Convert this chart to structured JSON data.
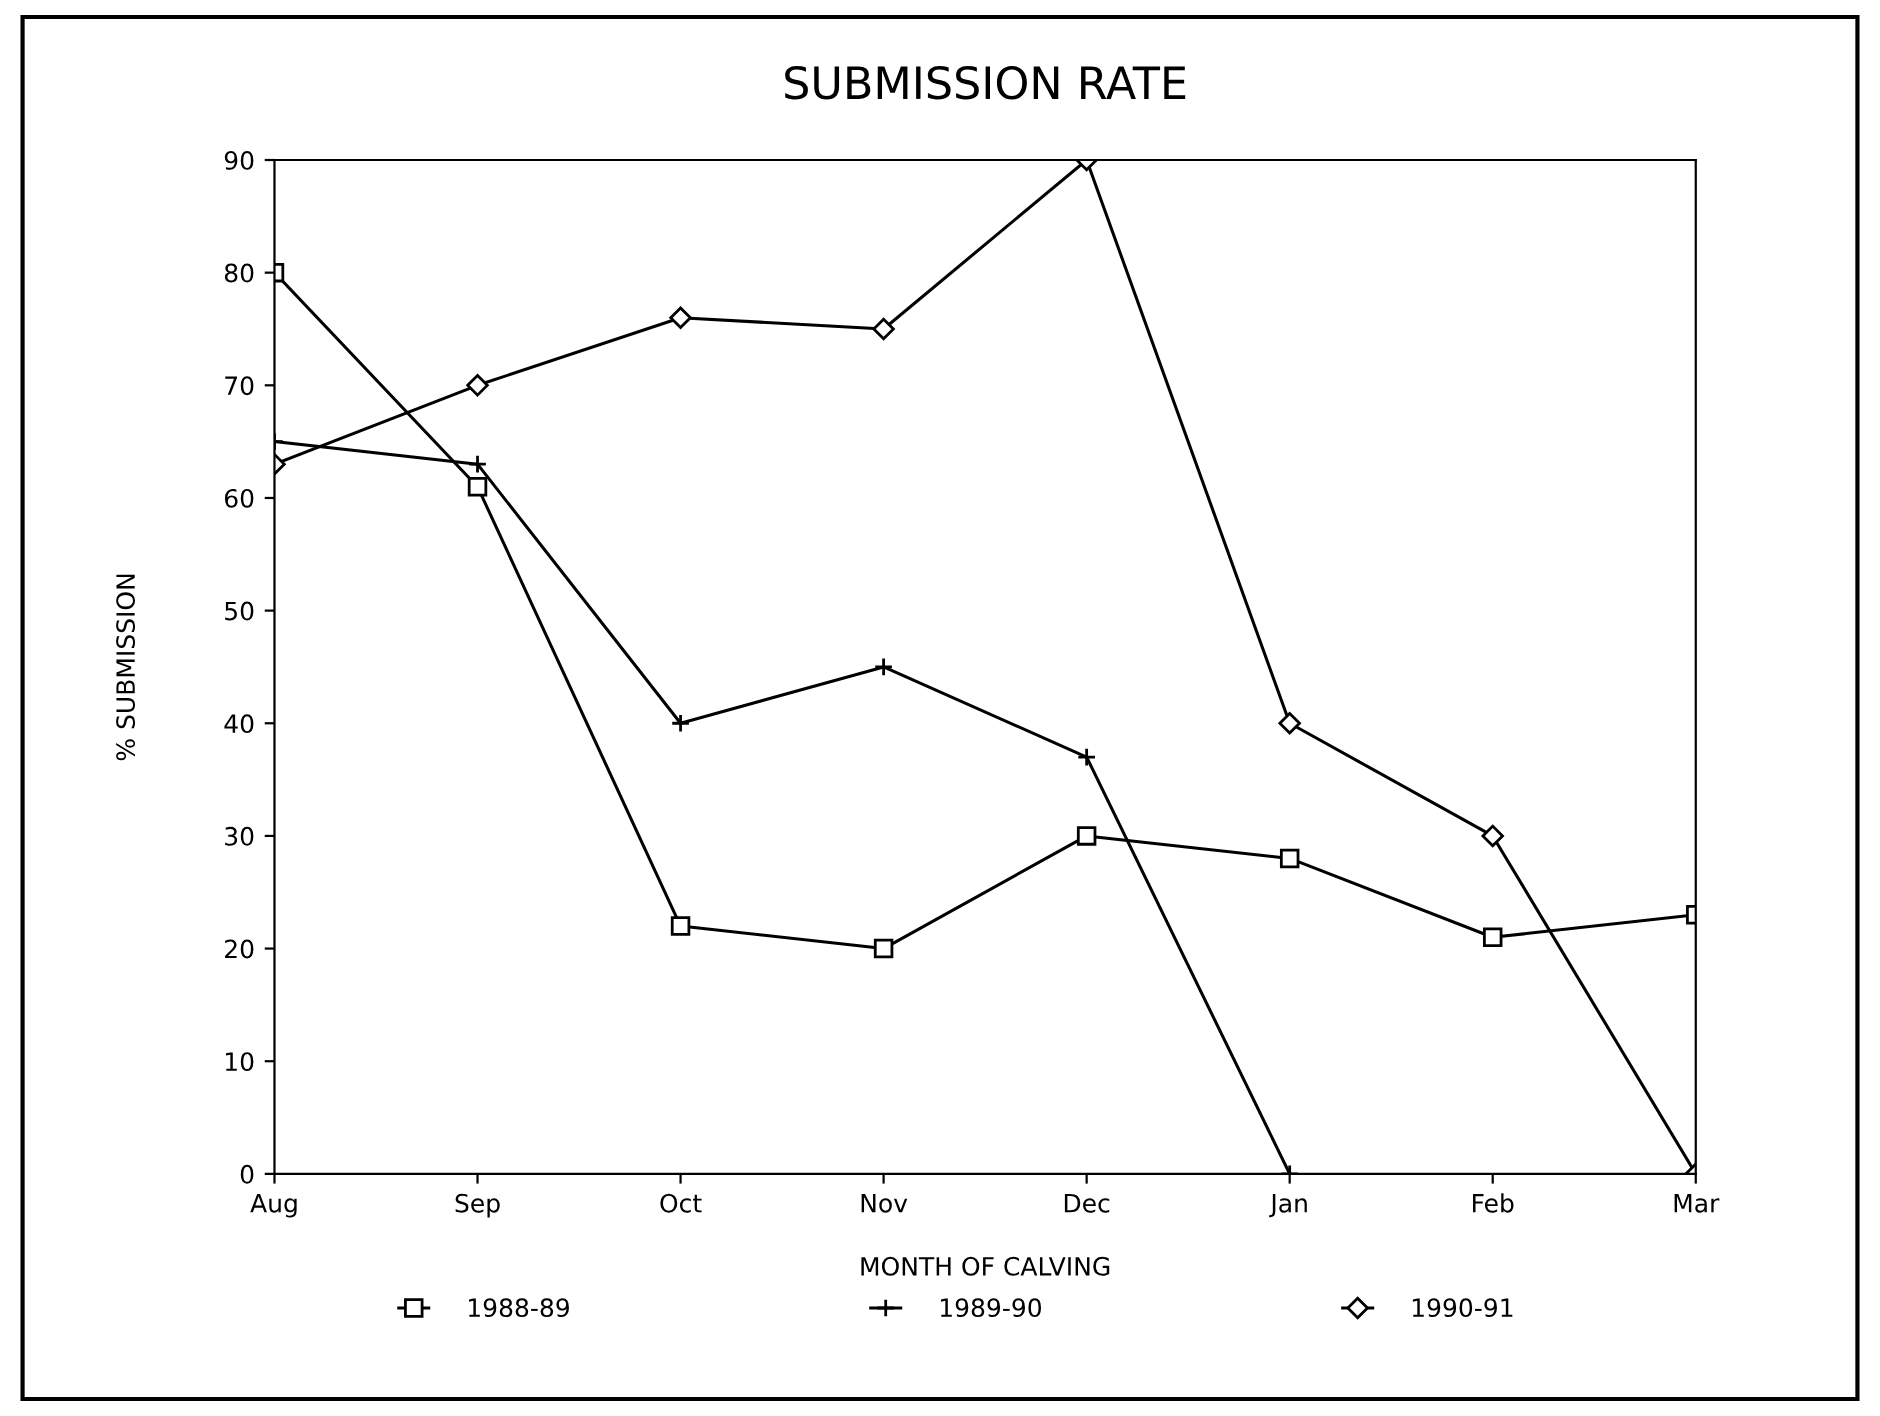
{
  "chart_data": {
    "type": "line",
    "title": "SUBMISSION RATE",
    "xlabel": "MONTH OF CALVING",
    "ylabel": "% SUBMISSION",
    "categories": [
      "Aug",
      "Sep",
      "Oct",
      "Nov",
      "Dec",
      "Jan",
      "Feb",
      "Mar"
    ],
    "series": [
      {
        "name": "1988-89",
        "color": "#000000",
        "marker": "square",
        "values": [
          80,
          61,
          22,
          20,
          30,
          28,
          21,
          23
        ]
      },
      {
        "name": "1989-90",
        "color": "#000000",
        "marker": "cross",
        "values": [
          65,
          63,
          40,
          45,
          37,
          0,
          null,
          null
        ]
      },
      {
        "name": "1990-91",
        "color": "#000000",
        "marker": "diamond",
        "values": [
          63,
          70,
          76,
          75,
          90,
          40,
          30,
          0
        ]
      }
    ],
    "ylim": [
      0,
      90
    ],
    "yticks": [
      0,
      10,
      20,
      30,
      40,
      50,
      60,
      70,
      80,
      90
    ],
    "grid": false,
    "legend": "bottom",
    "line_style": "solid"
  }
}
